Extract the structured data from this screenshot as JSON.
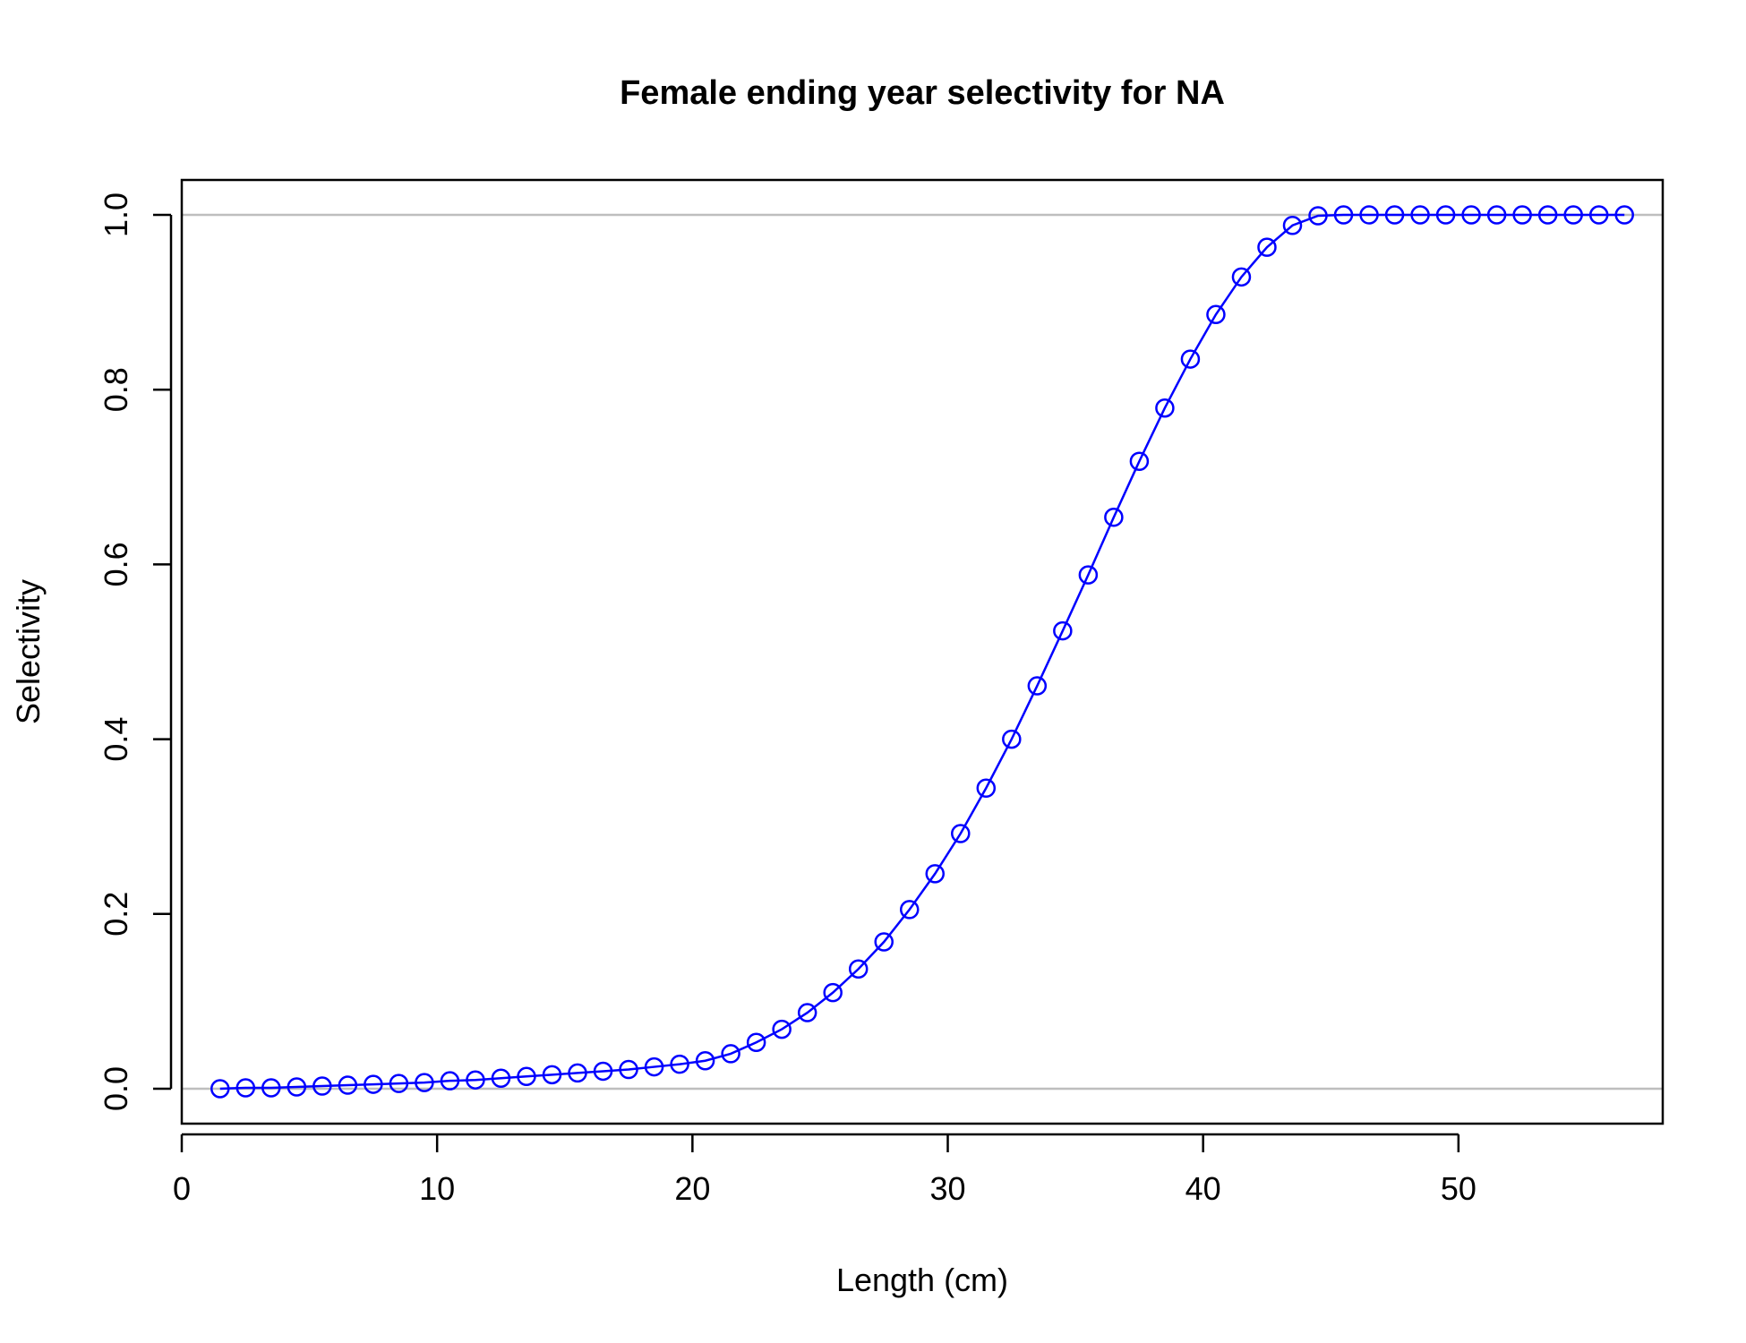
{
  "chart_data": {
    "type": "line",
    "title": "Female ending year selectivity for NA",
    "xlabel": "Length (cm)",
    "ylabel": "Selectivity",
    "xlim": [
      0,
      58
    ],
    "ylim": [
      -0.04,
      1.04
    ],
    "xticks": [
      0,
      10,
      20,
      30,
      40,
      50
    ],
    "yticks": [
      0.0,
      0.2,
      0.4,
      0.6,
      0.8,
      1.0
    ],
    "xtick_labels": [
      "0",
      "10",
      "20",
      "30",
      "40",
      "50"
    ],
    "ytick_labels": [
      "0.0",
      "0.2",
      "0.4",
      "0.6",
      "0.8",
      "1.0"
    ],
    "reference_lines": [
      0,
      1
    ],
    "reference_line_color": "#bebebe",
    "series_color": "#0000ff",
    "grid": false,
    "series": [
      {
        "x": [
          1.5,
          2.5,
          3.5,
          4.5,
          5.5,
          6.5,
          7.5,
          8.5,
          9.5,
          10.5,
          11.5,
          12.5,
          13.5,
          14.5,
          15.5,
          16.5,
          17.5,
          18.5,
          19.5,
          20.5,
          21.5,
          22.5,
          23.5,
          24.5,
          25.5,
          26.5,
          27.5,
          28.5,
          29.5,
          30.5,
          31.5,
          32.5,
          33.5,
          34.5,
          35.5,
          36.5,
          37.5,
          38.5,
          39.5,
          40.5,
          41.5,
          42.5,
          43.5,
          44.5,
          45.5,
          46.5,
          47.5,
          48.5,
          49.5,
          50.5,
          51.5,
          52.5,
          53.5,
          54.5,
          55.5,
          56.5
        ],
        "y": [
          0.0,
          0.001,
          0.001,
          0.002,
          0.003,
          0.004,
          0.005,
          0.006,
          0.007,
          0.009,
          0.01,
          0.012,
          0.014,
          0.016,
          0.018,
          0.02,
          0.022,
          0.025,
          0.028,
          0.032,
          0.04,
          0.053,
          0.068,
          0.087,
          0.11,
          0.137,
          0.168,
          0.205,
          0.246,
          0.292,
          0.344,
          0.4,
          0.461,
          0.524,
          0.588,
          0.654,
          0.718,
          0.779,
          0.835,
          0.886,
          0.929,
          0.963,
          0.988,
          0.999,
          1.0,
          1.0,
          1.0,
          1.0,
          1.0,
          1.0,
          1.0,
          1.0,
          1.0,
          1.0,
          1.0,
          1.0
        ]
      }
    ]
  }
}
